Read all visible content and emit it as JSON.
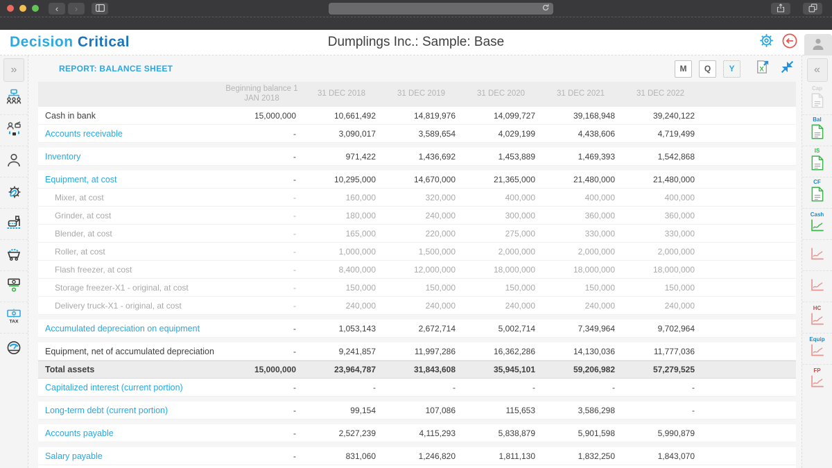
{
  "browser": {
    "address_value": "",
    "back_glyph": "‹",
    "forward_glyph": "›"
  },
  "header": {
    "logo_primary": "Decision",
    "logo_secondary": "Critical",
    "title": "Dumplings Inc.: Sample: Base"
  },
  "report_bar": {
    "title": "REPORT: BALANCE SHEET",
    "period_buttons": [
      {
        "label": "M",
        "active": false
      },
      {
        "label": "Q",
        "active": false
      },
      {
        "label": "Y",
        "active": true
      }
    ]
  },
  "left_rail": {
    "expand_glyph": "»",
    "items": [
      {
        "name": "org-structure"
      },
      {
        "name": "staff"
      },
      {
        "name": "person"
      },
      {
        "name": "tools"
      },
      {
        "name": "production"
      },
      {
        "name": "cart"
      },
      {
        "name": "revenue"
      },
      {
        "name": "tax"
      },
      {
        "name": "gauge"
      }
    ]
  },
  "right_rail": {
    "collapse_glyph": "«",
    "items": [
      {
        "name": "cap-report",
        "label": "Cap",
        "kind": "doc",
        "label_color": "#b5b5b5",
        "icon_color": "#c0c0c0",
        "disabled": true
      },
      {
        "name": "bal-report",
        "label": "Bal",
        "kind": "doc",
        "label_color": "#1e88c7",
        "icon_color": "#3cb54a",
        "disabled": false
      },
      {
        "name": "is-report",
        "label": "IS",
        "kind": "doc",
        "label_color": "#3cb54a",
        "icon_color": "#3cb54a",
        "disabled": false
      },
      {
        "name": "cf-report",
        "label": "CF",
        "kind": "doc",
        "label_color": "#1e88c7",
        "icon_color": "#3cb54a",
        "disabled": false
      },
      {
        "name": "cash-chart",
        "label": "Cash",
        "kind": "chart",
        "label_color": "#1e88c7",
        "icon_color": "#3cb54a",
        "disabled": false
      },
      {
        "name": "output-chart",
        "label": "",
        "kind": "chart",
        "label_color": "#4a4a4a",
        "icon_color": "#e8948d",
        "disabled": false
      },
      {
        "name": "equipment-usage-chart",
        "label": "",
        "kind": "chart",
        "label_color": "#4a4a4a",
        "icon_color": "#e8948d",
        "disabled": false
      },
      {
        "name": "hc-chart",
        "label": "HC",
        "kind": "chart",
        "label_color": "#c0504d",
        "icon_color": "#e8948d",
        "disabled": false
      },
      {
        "name": "equip-chart",
        "label": "Equip",
        "kind": "chart",
        "label_color": "#1e88c7",
        "icon_color": "#e8948d",
        "disabled": false
      },
      {
        "name": "fp-chart",
        "label": "FP",
        "kind": "chart",
        "label_color": "#c0504d",
        "icon_color": "#e8948d",
        "disabled": false
      }
    ]
  },
  "colors": {
    "accent_blue": "#29a8e0",
    "brand_dark_blue": "#1b75bc",
    "link": "#29a8e0",
    "total_row_bg": "#ececec",
    "header_text": "#b4b4b4",
    "traffic_red": "#ed6a5e",
    "traffic_yellow": "#f5bf4f",
    "traffic_green": "#61c454"
  },
  "table": {
    "columns": [
      "Beginning balance 1 JAN 2018",
      "31 DEC 2018",
      "31 DEC 2019",
      "31 DEC 2020",
      "31 DEC 2021",
      "31 DEC 2022"
    ],
    "rows": [
      {
        "label": "Cash in bank",
        "style": "normal",
        "gap": false,
        "values": [
          "15,000,000",
          "10,661,492",
          "14,819,976",
          "14,099,727",
          "39,168,948",
          "39,240,122"
        ]
      },
      {
        "label": "Accounts receivable",
        "style": "link",
        "gap": false,
        "values": [
          "-",
          "3,090,017",
          "3,589,654",
          "4,029,199",
          "4,438,606",
          "4,719,499"
        ]
      },
      {
        "label": "Inventory",
        "style": "link",
        "gap": true,
        "values": [
          "-",
          "971,422",
          "1,436,692",
          "1,453,889",
          "1,469,393",
          "1,542,868"
        ]
      },
      {
        "label": "Equipment, at cost",
        "style": "link",
        "gap": true,
        "values": [
          "-",
          "10,295,000",
          "14,670,000",
          "21,365,000",
          "21,480,000",
          "21,480,000"
        ]
      },
      {
        "label": "Mixer, at cost",
        "style": "sub",
        "gap": false,
        "values": [
          "-",
          "160,000",
          "320,000",
          "400,000",
          "400,000",
          "400,000"
        ]
      },
      {
        "label": "Grinder, at cost",
        "style": "sub",
        "gap": false,
        "values": [
          "-",
          "180,000",
          "240,000",
          "300,000",
          "360,000",
          "360,000"
        ]
      },
      {
        "label": "Blender, at cost",
        "style": "sub",
        "gap": false,
        "values": [
          "-",
          "165,000",
          "220,000",
          "275,000",
          "330,000",
          "330,000"
        ]
      },
      {
        "label": "Roller, at cost",
        "style": "sub",
        "gap": false,
        "values": [
          "-",
          "1,000,000",
          "1,500,000",
          "2,000,000",
          "2,000,000",
          "2,000,000"
        ]
      },
      {
        "label": "Flash freezer, at cost",
        "style": "sub",
        "gap": false,
        "values": [
          "-",
          "8,400,000",
          "12,000,000",
          "18,000,000",
          "18,000,000",
          "18,000,000"
        ]
      },
      {
        "label": "Storage freezer-X1 - original, at cost",
        "style": "sub",
        "gap": false,
        "values": [
          "-",
          "150,000",
          "150,000",
          "150,000",
          "150,000",
          "150,000"
        ]
      },
      {
        "label": "Delivery truck-X1 - original, at cost",
        "style": "sub",
        "gap": false,
        "values": [
          "-",
          "240,000",
          "240,000",
          "240,000",
          "240,000",
          "240,000"
        ]
      },
      {
        "label": "Accumulated depreciation on equipment",
        "style": "link",
        "gap": true,
        "values": [
          "-",
          "1,053,143",
          "2,672,714",
          "5,002,714",
          "7,349,964",
          "9,702,964"
        ]
      },
      {
        "label": "Equipment, net of accumulated depreciation",
        "style": "normal",
        "gap": true,
        "values": [
          "-",
          "9,241,857",
          "11,997,286",
          "16,362,286",
          "14,130,036",
          "11,777,036"
        ]
      },
      {
        "label": "Total assets",
        "style": "total",
        "gap": false,
        "values": [
          "15,000,000",
          "23,964,787",
          "31,843,608",
          "35,945,101",
          "59,206,982",
          "57,279,525"
        ]
      },
      {
        "label": "Capitalized interest (current portion)",
        "style": "link",
        "gap": false,
        "values": [
          "-",
          "-",
          "-",
          "-",
          "-",
          "-"
        ]
      },
      {
        "label": "Long-term debt (current portion)",
        "style": "link",
        "gap": true,
        "values": [
          "-",
          "99,154",
          "107,086",
          "115,653",
          "3,586,298",
          "-"
        ]
      },
      {
        "label": "Accounts payable",
        "style": "link",
        "gap": true,
        "values": [
          "-",
          "2,527,239",
          "4,115,293",
          "5,838,879",
          "5,901,598",
          "5,990,879"
        ]
      },
      {
        "label": "Salary payable",
        "style": "link",
        "gap": true,
        "values": [
          "-",
          "831,060",
          "1,246,820",
          "1,811,130",
          "1,832,250",
          "1,843,070"
        ]
      }
    ]
  }
}
